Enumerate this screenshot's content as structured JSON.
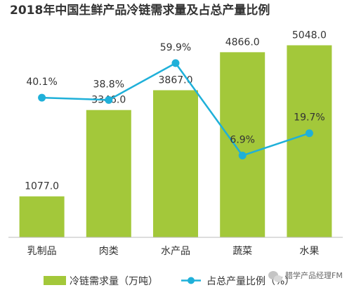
{
  "chart_data": {
    "type": "bar",
    "title": "2018年中国生鲜产品冷链需求量及占总产量比例",
    "categories": [
      "乳制品",
      "肉类",
      "水产品",
      "蔬菜",
      "水果"
    ],
    "series": [
      {
        "name": "冷链需求量（万吨）",
        "type": "bar",
        "values": [
          1077.0,
          3346.0,
          3867.0,
          4866.0,
          5048.0
        ],
        "labels": [
          "1077.0",
          "3346.0",
          "3867.0",
          "4866.0",
          "5048.0"
        ],
        "color": "#a3c83a"
      },
      {
        "name": "占总产量比例（%）",
        "type": "line",
        "values": [
          40.1,
          38.8,
          59.9,
          6.9,
          19.7
        ],
        "labels": [
          "40.1%",
          "38.8%",
          "59.9%",
          "6.9%",
          "19.7%"
        ],
        "color": "#1fb0d9"
      }
    ],
    "bar_ylim": [
      0,
      5500
    ],
    "line_ylim": [
      -40,
      80
    ],
    "legend_position": "bottom",
    "grid": false
  },
  "watermark": {
    "text": "腊学产品经理FM",
    "icon": "wechat-icon"
  }
}
